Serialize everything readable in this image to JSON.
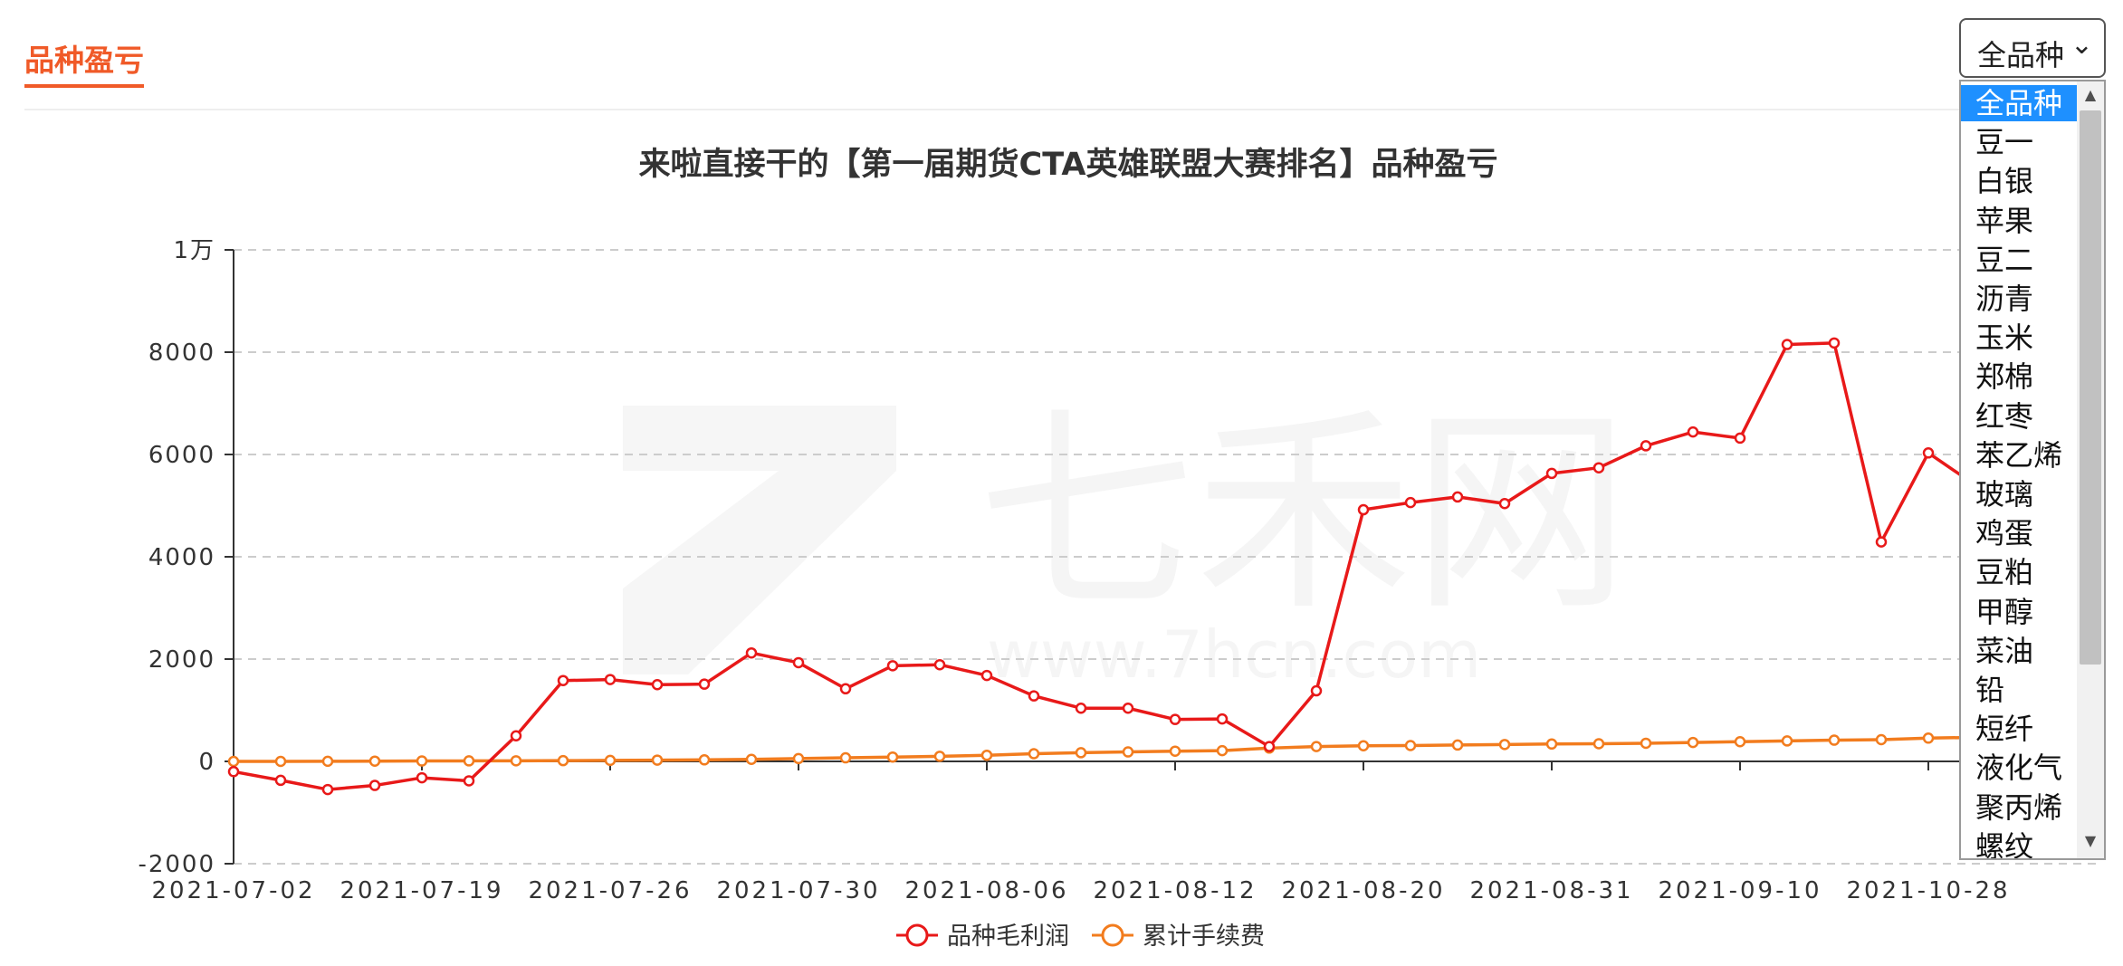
{
  "header": {
    "section_title": "品种盈亏"
  },
  "watermark": {
    "logo_text": "七禾网",
    "url_text": "www.7hcn.com"
  },
  "select": {
    "selected_label": "全品种",
    "chevron": "⌄",
    "options": [
      "全品种",
      "豆一",
      "白银",
      "苹果",
      "豆二",
      "沥青",
      "玉米",
      "郑棉",
      "红枣",
      "苯乙烯",
      "玻璃",
      "鸡蛋",
      "豆粕",
      "甲醇",
      "菜油",
      "铅",
      "短纤",
      "液化气",
      "聚丙烯",
      "螺纹"
    ],
    "scroll_up_icon": "▲",
    "scroll_down_icon": "▼"
  },
  "chart_data": {
    "type": "line",
    "title": "来啦直接干的【第一届期货CTA英雄联盟大赛排名】品种盈亏",
    "ylim": [
      -2000,
      10000
    ],
    "yticks": [
      {
        "value": -2000,
        "label": "-2000"
      },
      {
        "value": 0,
        "label": "0"
      },
      {
        "value": 2000,
        "label": "2000"
      },
      {
        "value": 4000,
        "label": "4000"
      },
      {
        "value": 6000,
        "label": "6000"
      },
      {
        "value": 8000,
        "label": "8000"
      },
      {
        "value": 10000,
        "label": "1万"
      }
    ],
    "xtick_labels": [
      "2021-07-02",
      "2021-07-19",
      "2021-07-26",
      "2021-07-30",
      "2021-08-06",
      "2021-08-12",
      "2021-08-20",
      "2021-08-31",
      "2021-09-10",
      "2021-10-28"
    ],
    "grid": true,
    "legend_position": "bottom-center",
    "series": [
      {
        "name": "品种毛利润",
        "color": "#e81919",
        "values": [
          -200,
          -370,
          -550,
          -470,
          -320,
          -380,
          500,
          1580,
          1600,
          1500,
          1510,
          2120,
          1930,
          1420,
          1870,
          1890,
          1680,
          1280,
          1040,
          1040,
          820,
          830,
          290,
          1380,
          4920,
          5060,
          5170,
          5040,
          5630,
          5740,
          6170,
          6440,
          6320,
          8150,
          8180,
          4290,
          6030,
          5400
        ]
      },
      {
        "name": "累计手续费",
        "color": "#f27c1e",
        "values": [
          0,
          0,
          2,
          5,
          8,
          10,
          12,
          15,
          20,
          25,
          30,
          40,
          55,
          70,
          85,
          100,
          120,
          150,
          170,
          185,
          200,
          210,
          260,
          290,
          305,
          310,
          320,
          330,
          340,
          345,
          355,
          370,
          385,
          400,
          415,
          425,
          455,
          470
        ]
      }
    ]
  }
}
